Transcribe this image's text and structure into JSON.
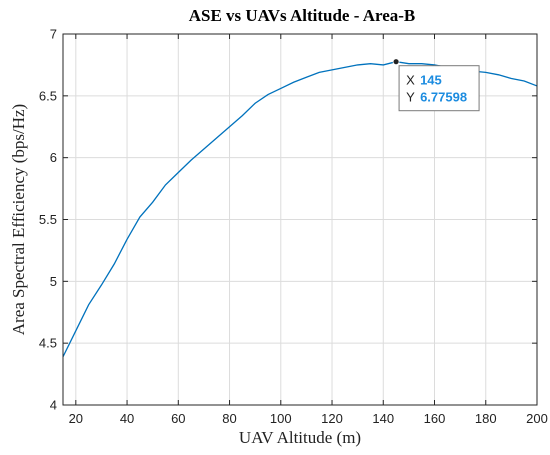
{
  "chart_data": {
    "type": "line",
    "title": "ASE vs UAVs Altitude - Area-B",
    "xlabel": "UAV Altitude (m)",
    "ylabel": "Area Spectral Efficiency (bps/Hz)",
    "xlim": [
      15,
      200
    ],
    "ylim": [
      4,
      7
    ],
    "xticks": [
      20,
      40,
      60,
      80,
      100,
      120,
      140,
      160,
      180,
      200
    ],
    "yticks": [
      4,
      4.5,
      5,
      5.5,
      6,
      6.5,
      7
    ],
    "xtick_labels": [
      "20",
      "40",
      "60",
      "80",
      "100",
      "120",
      "140",
      "160",
      "180",
      "200"
    ],
    "ytick_labels": [
      "4",
      "4.5",
      "5",
      "5.5",
      "6",
      "6.5",
      "7"
    ],
    "grid": true,
    "series": [
      {
        "color": "#0072BD",
        "x": [
          15,
          20,
          25,
          30,
          35,
          40,
          45,
          50,
          55,
          60,
          65,
          70,
          75,
          80,
          85,
          90,
          95,
          100,
          105,
          110,
          115,
          120,
          125,
          130,
          135,
          140,
          145,
          150,
          155,
          160,
          165,
          170,
          175,
          180,
          185,
          190,
          195,
          200
        ],
        "y": [
          4.39,
          4.6,
          4.81,
          4.97,
          5.14,
          5.34,
          5.52,
          5.64,
          5.78,
          5.88,
          5.98,
          6.07,
          6.16,
          6.25,
          6.34,
          6.44,
          6.51,
          6.56,
          6.61,
          6.65,
          6.69,
          6.71,
          6.73,
          6.75,
          6.76,
          6.75,
          6.776,
          6.76,
          6.76,
          6.75,
          6.73,
          6.72,
          6.7,
          6.69,
          6.67,
          6.64,
          6.62,
          6.58
        ]
      }
    ],
    "datatip": {
      "x_key": "X",
      "x_value": "145",
      "y_key": "Y",
      "y_value": "6.77598",
      "x": 145,
      "y": 6.77598,
      "value_color": "#1c8ce0",
      "marker_color": "#222222"
    }
  }
}
